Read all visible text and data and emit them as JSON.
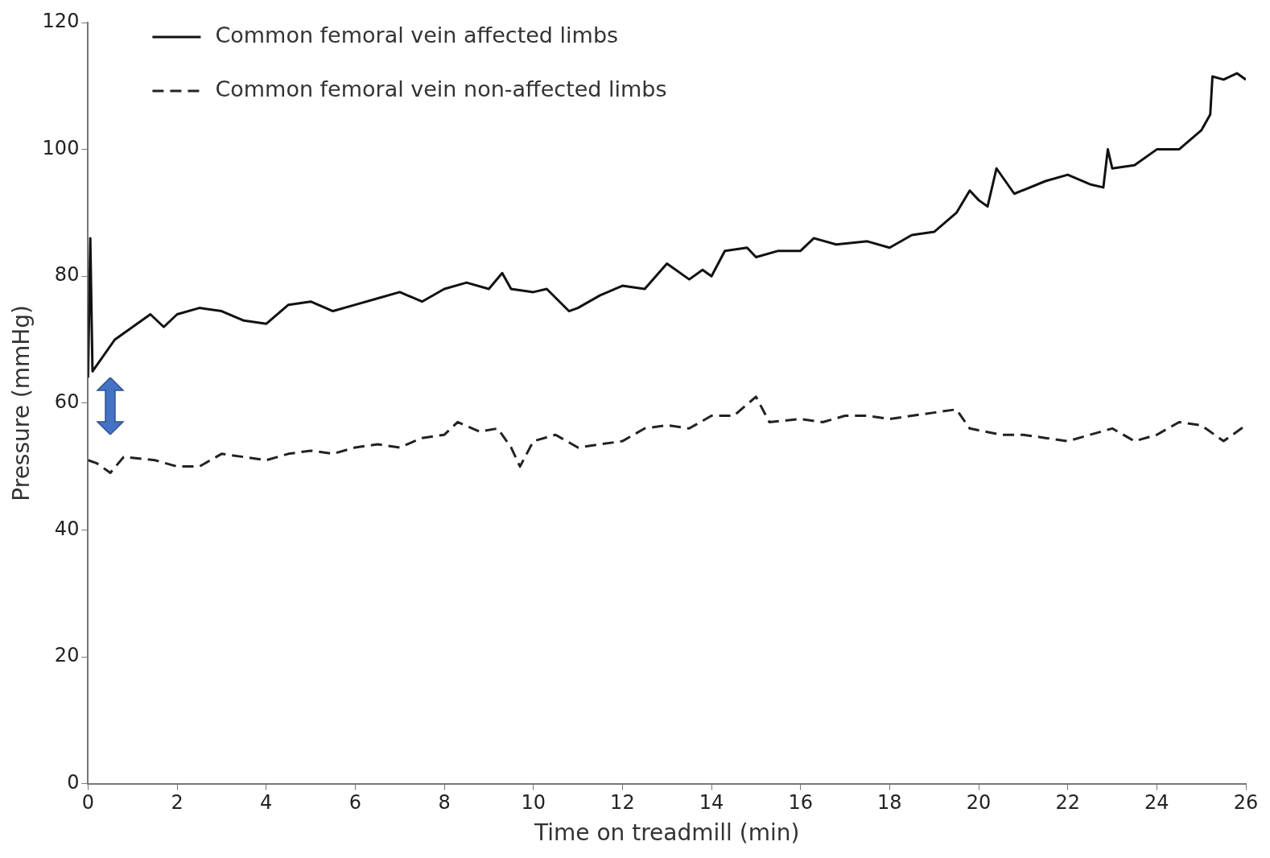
{
  "chart_data": {
    "type": "line",
    "xlabel": "Time on treadmill (min)",
    "ylabel": "Pressure (mmHg)",
    "xlim": [
      0,
      26
    ],
    "xticks": [
      0,
      2,
      4,
      6,
      8,
      10,
      12,
      14,
      16,
      18,
      20,
      22,
      24,
      26
    ],
    "ylim": [
      0,
      120
    ],
    "yticks": [
      0,
      20,
      40,
      60,
      80,
      100,
      120
    ],
    "grid": false,
    "legend": "top left",
    "marker": "none",
    "series": [
      {
        "name": "Common femoral vein affected limbs",
        "color": "#111111",
        "line_style": "solid",
        "x": [
          0,
          0.05,
          0.1,
          0.3,
          0.6,
          1,
          1.4,
          1.7,
          2,
          2.5,
          3,
          3.5,
          4,
          4.5,
          5,
          5.5,
          6,
          6.5,
          7,
          7.5,
          8,
          8.5,
          9,
          9.3,
          9.5,
          10,
          10.3,
          10.8,
          11,
          11.5,
          12,
          12.5,
          13,
          13.5,
          13.8,
          14,
          14.3,
          14.8,
          15,
          15.5,
          16,
          16.3,
          16.8,
          17.5,
          18,
          18.5,
          19,
          19.5,
          19.8,
          20,
          20.2,
          20.4,
          20.8,
          21.5,
          22,
          22.5,
          22.8,
          22.9,
          23,
          23.5,
          24,
          24.5,
          25,
          25.2,
          25.25,
          25.5,
          25.8,
          26
        ],
        "values": [
          64,
          86,
          65,
          67,
          70,
          72,
          74,
          72,
          74,
          75,
          74.5,
          73,
          72.5,
          75.5,
          76,
          74.5,
          75.5,
          76.5,
          77.5,
          76,
          78,
          79,
          78,
          80.5,
          78,
          77.5,
          78,
          74.5,
          75,
          77,
          78.5,
          78,
          82,
          79.5,
          81,
          80,
          84,
          84.5,
          83,
          84,
          84,
          86,
          85,
          85.5,
          84.5,
          86.5,
          87,
          90,
          93.5,
          92,
          91,
          97,
          93,
          95,
          96,
          94.5,
          94,
          100,
          97,
          97.5,
          100,
          100,
          103,
          105.5,
          111.5,
          111,
          112,
          111
        ]
      },
      {
        "name": "Common femoral vein non-affected limbs",
        "color": "#222222",
        "line_style": "dashed",
        "x": [
          0,
          0.2,
          0.5,
          0.8,
          1.5,
          2,
          2.5,
          3,
          3.5,
          4,
          4.5,
          5,
          5.5,
          6,
          6.5,
          7,
          7.5,
          8,
          8.3,
          8.8,
          9.2,
          9.5,
          9.7,
          10,
          10.5,
          11,
          11.5,
          12,
          12.5,
          13,
          13.5,
          14,
          14.5,
          15,
          15.3,
          16,
          16.5,
          17,
          17.5,
          18,
          18.5,
          19,
          19.5,
          19.8,
          20.5,
          21,
          21.5,
          22,
          22.5,
          23,
          23.5,
          24,
          24.5,
          25,
          25.5,
          26
        ],
        "values": [
          51,
          50.5,
          49,
          51.5,
          51,
          50,
          50,
          52,
          51.5,
          51,
          52,
          52.5,
          52,
          53,
          53.5,
          53,
          54.5,
          55,
          57,
          55.5,
          56,
          53,
          50,
          54,
          55,
          53,
          53.5,
          54,
          56,
          56.5,
          56,
          58,
          58,
          61,
          57,
          57.5,
          57,
          58,
          58,
          57.5,
          58,
          58.5,
          59,
          56,
          55,
          55,
          54.5,
          54,
          55,
          56,
          54,
          55,
          57,
          56.5,
          54,
          56.5
        ]
      }
    ]
  }
}
